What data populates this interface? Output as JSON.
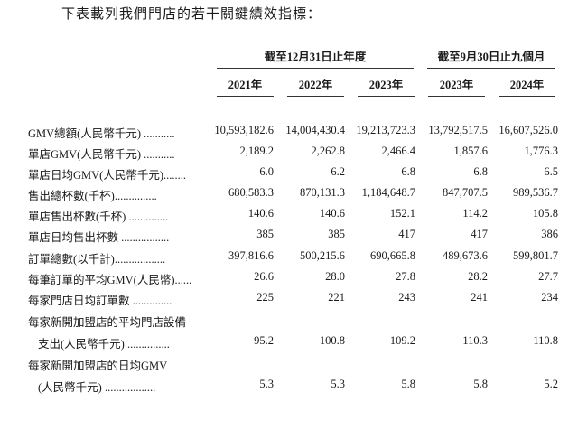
{
  "intro": "下表載列我們門店的若干關鍵績效指標：",
  "group_headers": [
    "截至12月31日止年度",
    "截至9月30日止九個月"
  ],
  "year_headers": [
    "2021年",
    "2022年",
    "2023年",
    "2023年",
    "2024年"
  ],
  "rows": [
    {
      "label": "GMV總額(人民幣千元) ...........",
      "values": [
        "10,593,182.6",
        "14,004,430.4",
        "19,213,723.3",
        "13,792,517.5",
        "16,607,526.0"
      ]
    },
    {
      "label": "單店GMV(人民幣千元) ...........",
      "values": [
        "2,189.2",
        "2,262.8",
        "2,466.4",
        "1,857.6",
        "1,776.3"
      ]
    },
    {
      "label": "單店日均GMV(人民幣千元)........",
      "values": [
        "6.0",
        "6.2",
        "6.8",
        "6.8",
        "6.5"
      ]
    },
    {
      "label": "售出總杯數(千杯)...............",
      "values": [
        "680,583.3",
        "870,131.3",
        "1,184,648.7",
        "847,707.5",
        "989,536.7"
      ]
    },
    {
      "label": "單店售出杯數(千杯) ..............",
      "values": [
        "140.6",
        "140.6",
        "152.1",
        "114.2",
        "105.8"
      ]
    },
    {
      "label": "單店日均售出杯數 .................",
      "values": [
        "385",
        "385",
        "417",
        "417",
        "386"
      ]
    },
    {
      "label": "訂單總數(以千計)..................",
      "values": [
        "397,816.6",
        "500,215.6",
        "690,665.8",
        "489,673.6",
        "599,801.7"
      ]
    },
    {
      "label": "每筆訂單的平均GMV(人民幣)......",
      "values": [
        "26.6",
        "28.0",
        "27.8",
        "28.2",
        "27.7"
      ]
    },
    {
      "label": "每家門店日均訂單數 ..............",
      "values": [
        "225",
        "221",
        "243",
        "241",
        "234"
      ]
    },
    {
      "label": "每家新開加盟店的平均門店設備",
      "values": []
    },
    {
      "label": "支出(人民幣千元) ...............",
      "indent": true,
      "values": [
        "95.2",
        "100.8",
        "109.2",
        "110.3",
        "110.8"
      ]
    },
    {
      "label": "每家新開加盟店的日均GMV",
      "values": []
    },
    {
      "label": "(人民幣千元) ..................",
      "indent": true,
      "values": [
        "5.3",
        "5.3",
        "5.8",
        "5.8",
        "5.2"
      ]
    }
  ]
}
